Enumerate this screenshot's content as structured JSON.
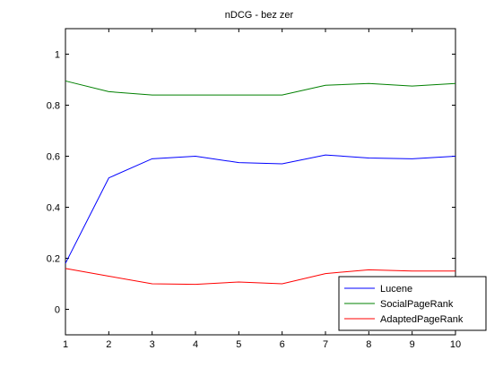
{
  "chart_data": {
    "type": "line",
    "title": "nDCG - bez zer",
    "xlabel": "",
    "ylabel": "",
    "x": [
      1,
      2,
      3,
      4,
      5,
      6,
      7,
      8,
      9,
      10
    ],
    "xlim": [
      1,
      10
    ],
    "ylim": [
      -0.1,
      1.1
    ],
    "xticks": [
      1,
      2,
      3,
      4,
      5,
      6,
      7,
      8,
      9,
      10
    ],
    "yticks": [
      0,
      0.2,
      0.4,
      0.6,
      0.8,
      1
    ],
    "ytick_labels": [
      "0",
      "0.2",
      "0.4",
      "0.6",
      "0.8",
      "1"
    ],
    "grid": false,
    "legend_position": "bottom-right",
    "series": [
      {
        "name": "Lucene",
        "color": "#0000ff",
        "values": [
          0.18,
          0.515,
          0.59,
          0.6,
          0.575,
          0.57,
          0.605,
          0.593,
          0.59,
          0.6
        ]
      },
      {
        "name": "SocialPageRank",
        "color": "#008000",
        "values": [
          0.895,
          0.853,
          0.84,
          0.84,
          0.84,
          0.84,
          0.878,
          0.885,
          0.875,
          0.885
        ]
      },
      {
        "name": "AdaptedPageRank",
        "color": "#ff0000",
        "values": [
          0.16,
          0.13,
          0.1,
          0.098,
          0.107,
          0.1,
          0.14,
          0.155,
          0.15,
          0.15
        ]
      }
    ]
  }
}
